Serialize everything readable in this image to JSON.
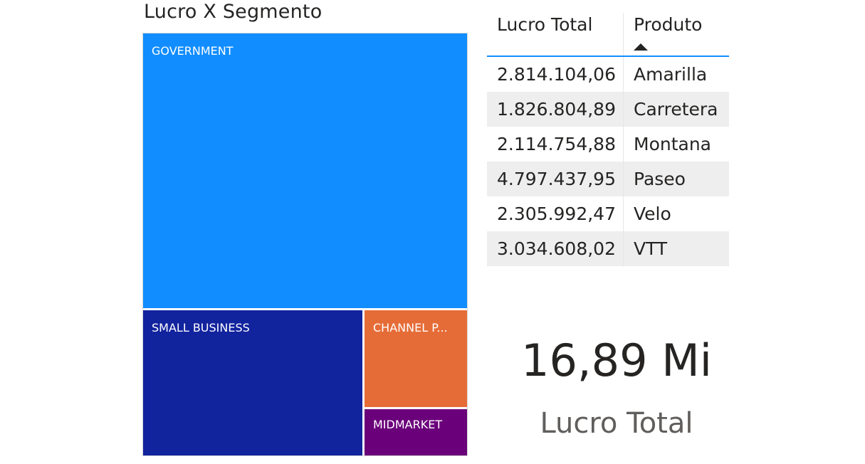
{
  "chart_data": [
    {
      "type": "treemap",
      "title": "Lucro X Segmento",
      "categories": [
        "GOVERNMENT",
        "SMALL BUSINESS",
        "CHANNEL P...",
        "MIDMARKET"
      ],
      "values": [
        11.39,
        4.14,
        1.32,
        0.66
      ],
      "colors": [
        "#118dff",
        "#12239e",
        "#e66c37",
        "#6b007b"
      ]
    },
    {
      "type": "table",
      "columns": [
        "Lucro Total",
        "Produto"
      ],
      "sorted_column": "Produto",
      "sort_direction": "ascending",
      "rows": [
        [
          "2.814.104,06",
          "Amarilla"
        ],
        [
          "1.826.804,89",
          "Carretera"
        ],
        [
          "2.114.754,88",
          "Montana"
        ],
        [
          "4.797.437,95",
          "Paseo"
        ],
        [
          "2.305.992,47",
          "Velo"
        ],
        [
          "3.034.608,02",
          "VTT"
        ]
      ]
    }
  ],
  "card": {
    "value": "16,89 Mi",
    "label": "Lucro Total"
  },
  "colors": {
    "accent": "#118dff",
    "text": "#252423",
    "muted": "#605e5c",
    "row_alt": "#eeeeee"
  }
}
